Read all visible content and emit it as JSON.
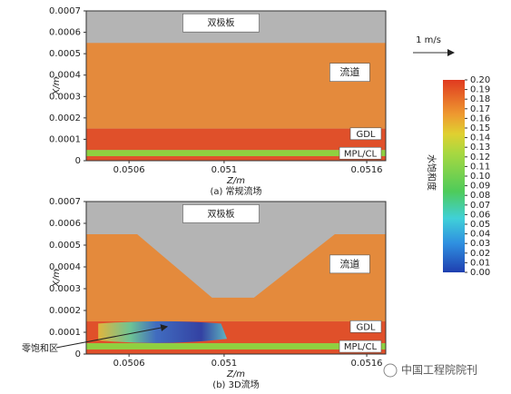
{
  "chart_data": [
    {
      "type": "contour",
      "caption": "(a) 常规流场",
      "xlabel": "Z/m",
      "ylabel": "X/m",
      "xlim": [
        0.05042,
        0.05168
      ],
      "ylim": [
        0,
        0.0007
      ],
      "xticks": [
        0.0506,
        0.051,
        0.0516
      ],
      "yticks": [
        0,
        0.0001,
        0.0002,
        0.0003,
        0.0004,
        0.0005,
        0.0006,
        0.0007
      ],
      "labels": [
        "双极板",
        "流道",
        "GDL",
        "MPL/CL"
      ]
    },
    {
      "type": "contour-3d",
      "caption": "(b) 3D流场",
      "xlabel": "Z/m",
      "ylabel": "X/m",
      "xlim": [
        0.05042,
        0.05168
      ],
      "ylim": [
        0,
        0.0007
      ],
      "xticks": [
        0.0506,
        0.051,
        0.0516
      ],
      "yticks": [
        0,
        0.0001,
        0.0002,
        0.0003,
        0.0004,
        0.0005,
        0.0006,
        0.0007
      ],
      "labels": [
        "双极板",
        "流道",
        "GDL",
        "MPL/CL"
      ],
      "annotation": "零饱和区"
    }
  ],
  "colorbar": {
    "title": "水饱和度",
    "lim": [
      0,
      0.2
    ],
    "ticks": [
      {
        "value": 0.2,
        "label": "0.20"
      },
      {
        "value": 0.19,
        "label": "0.19"
      },
      {
        "value": 0.18,
        "label": "0.18"
      },
      {
        "value": 0.17,
        "label": "0.17"
      },
      {
        "value": 0.16,
        "label": "0.16"
      },
      {
        "value": 0.15,
        "label": "0.15"
      },
      {
        "value": 0.14,
        "label": "0.14"
      },
      {
        "value": 0.13,
        "label": "0.13"
      },
      {
        "value": 0.12,
        "label": "0.12"
      },
      {
        "value": 0.11,
        "label": "0.11"
      },
      {
        "value": 0.1,
        "label": "0.10"
      },
      {
        "value": 0.09,
        "label": "0.09"
      },
      {
        "value": 0.08,
        "label": "0.08"
      },
      {
        "value": 0.07,
        "label": "0.07"
      },
      {
        "value": 0.06,
        "label": "0.06"
      },
      {
        "value": 0.05,
        "label": "0.05"
      },
      {
        "value": 0.04,
        "label": "0.04"
      },
      {
        "value": 0.03,
        "label": "0.03"
      },
      {
        "value": 0.02,
        "label": "0.02"
      },
      {
        "value": 0.01,
        "label": "0.01"
      },
      {
        "value": 0,
        "label": "0.00"
      }
    ]
  },
  "scale_arrow": "1 m/s",
  "watermark": "中国工程院院刊"
}
